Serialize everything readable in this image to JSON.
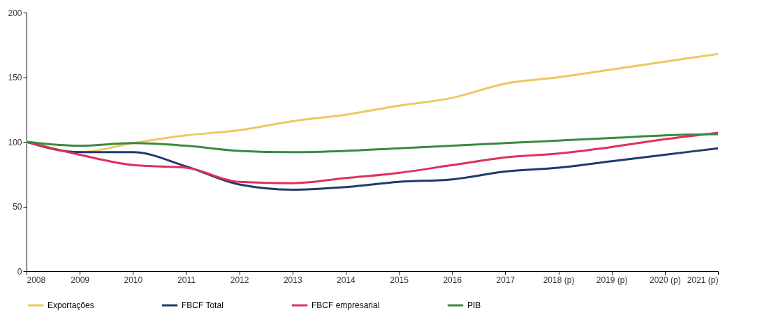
{
  "chart_data": {
    "type": "line",
    "categories": [
      "2008",
      "2009",
      "2010",
      "2011",
      "2012",
      "2013",
      "2014",
      "2015",
      "2016",
      "2017",
      "2018 (p)",
      "2019 (p)",
      "2020 (p)",
      "2021 (p)"
    ],
    "series": [
      {
        "name": "Exportações",
        "color": "#f0c860",
        "values": [
          100,
          92,
          99,
          105,
          109,
          116,
          121,
          128,
          134,
          145,
          150,
          156,
          162,
          168
        ]
      },
      {
        "name": "FBCF Total",
        "color": "#1f3a6e",
        "values": [
          100,
          92,
          92,
          81,
          67,
          63,
          65,
          69,
          71,
          77,
          80,
          85,
          90,
          95
        ]
      },
      {
        "name": "FBCF empresarial",
        "color": "#e0305a",
        "values": [
          100,
          90,
          82,
          80,
          69,
          68,
          72,
          76,
          82,
          88,
          91,
          96,
          102,
          107
        ]
      },
      {
        "name": "PIB",
        "color": "#3a8a3f",
        "values": [
          100,
          97,
          99,
          97,
          93,
          92,
          93,
          95,
          97,
          99,
          101,
          103,
          105,
          106
        ]
      }
    ],
    "ylim": [
      0,
      200
    ],
    "yticks": [
      0,
      50,
      100,
      150,
      200
    ],
    "grid": false,
    "legend": "bottom",
    "marker": "none",
    "line_style": "solid"
  }
}
